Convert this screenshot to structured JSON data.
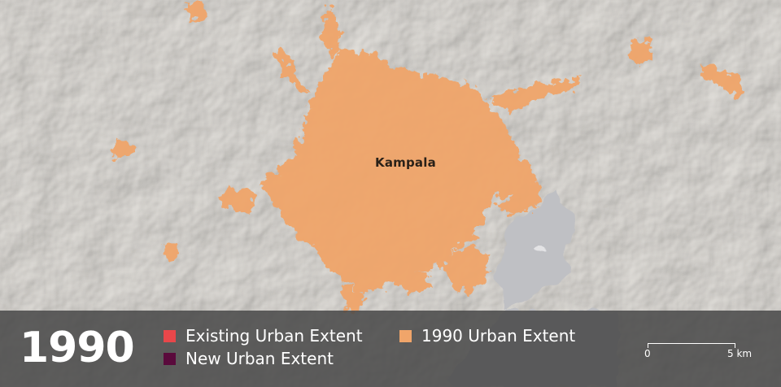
{
  "map": {
    "city_label": "Kampala",
    "colors": {
      "background": "#ece9e4",
      "urban_1990": "#f0a56a",
      "lake": "#bfc0c4",
      "bar": "#484848"
    }
  },
  "legend": {
    "year": "1990",
    "items": [
      {
        "label": "Existing Urban Extent",
        "color": "#e8474a"
      },
      {
        "label": "1990 Urban Extent",
        "color": "#f0a56a"
      },
      {
        "label": "New Urban Extent",
        "color": "#5a0a3c"
      }
    ]
  },
  "scale_bar": {
    "start_label": "0",
    "end_label": "5 km"
  }
}
